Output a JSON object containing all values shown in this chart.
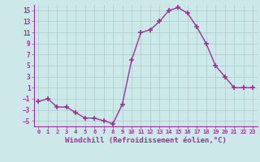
{
  "x": [
    0,
    1,
    2,
    3,
    4,
    5,
    6,
    7,
    8,
    9,
    10,
    11,
    12,
    13,
    14,
    15,
    16,
    17,
    18,
    19,
    20,
    21,
    22,
    23
  ],
  "y": [
    -1.5,
    -1.0,
    -2.5,
    -2.5,
    -3.5,
    -4.5,
    -4.5,
    -5.0,
    -5.5,
    -2.0,
    6.0,
    11.0,
    11.5,
    13.0,
    15.0,
    15.5,
    14.5,
    12.0,
    9.0,
    5.0,
    3.0,
    1.0,
    1.0,
    1.0
  ],
  "line_color": "#993399",
  "marker": "+",
  "marker_size": 5,
  "marker_linewidth": 1.2,
  "xlabel": "Windchill (Refroidissement éolien,°C)",
  "xlabel_fontsize": 6.5,
  "background_color": "#cce8e8",
  "grid_color": "#aacccc",
  "tick_color": "#993399",
  "label_color": "#993399",
  "yticks": [
    -5,
    -3,
    -1,
    1,
    3,
    5,
    7,
    9,
    11,
    13,
    15
  ],
  "xticks": [
    0,
    1,
    2,
    3,
    4,
    5,
    6,
    7,
    8,
    9,
    10,
    11,
    12,
    13,
    14,
    15,
    16,
    17,
    18,
    19,
    20,
    21,
    22,
    23
  ],
  "ylim": [
    -6,
    16
  ],
  "xlim": [
    -0.5,
    23.5
  ],
  "linewidth": 1.0,
  "spine_color": "#993399"
}
